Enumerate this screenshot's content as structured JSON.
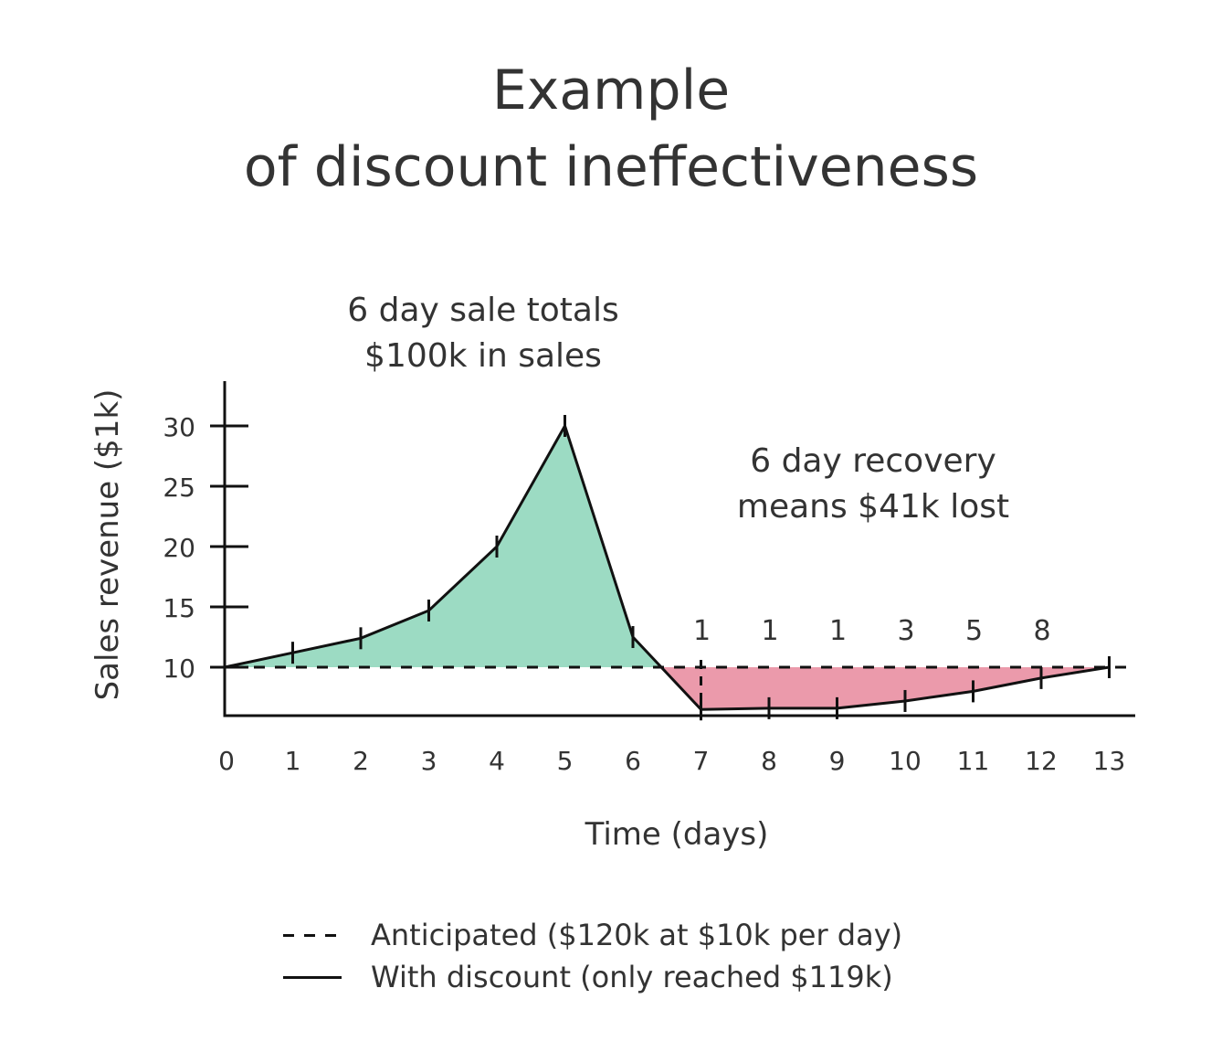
{
  "title": {
    "line1": "Example",
    "line2": "of discount ineffectiveness"
  },
  "annotations": {
    "sale_line1": "6 day sale totals",
    "sale_line2": "$100k in sales",
    "recovery_line1": "6 day recovery",
    "recovery_line2": "means $41k lost"
  },
  "axes": {
    "xlabel": "Time (days)",
    "ylabel": "Sales revenue ($1k)"
  },
  "legend": [
    {
      "style": "dashed",
      "label": "Anticipated ($120k at $10k per day)"
    },
    {
      "style": "solid",
      "label": "With discount (only reached $119k)"
    }
  ],
  "colors": {
    "gain_fill": "#9cdbc3",
    "loss_fill": "#eb9aab",
    "line": "#111111",
    "text": "#333333"
  },
  "chart_data": {
    "type": "area",
    "title": "Example of discount ineffectiveness",
    "xlabel": "Time (days)",
    "ylabel": "Sales revenue ($1k)",
    "x": [
      0,
      1,
      2,
      3,
      4,
      5,
      6,
      7,
      8,
      9,
      10,
      11,
      12,
      13
    ],
    "x_tick_labels": [
      "0",
      "1",
      "2",
      "3",
      "4",
      "5",
      "6",
      "7",
      "8",
      "9",
      "10",
      "11",
      "12",
      "13"
    ],
    "y_ticks": [
      10,
      15,
      20,
      25,
      30
    ],
    "ylim": [
      6,
      34
    ],
    "grid": false,
    "legend_position": "bottom",
    "series": [
      {
        "name": "Anticipated ($120k at $10k per day)",
        "style": "dashed",
        "values": [
          10,
          10,
          10,
          10,
          10,
          10,
          10,
          10,
          10,
          10,
          10,
          10,
          10,
          10
        ]
      },
      {
        "name": "With discount (only reached $119k)",
        "style": "solid",
        "values": [
          10,
          11.2,
          12.4,
          14.7,
          20,
          30,
          12.5,
          6.5,
          6.6,
          6.6,
          7.2,
          8.0,
          9.1,
          10
        ]
      }
    ],
    "shaded_regions": [
      {
        "label": "6 day sale totals $100k in sales",
        "color": "#9cdbc3",
        "x_range": [
          0,
          6.5
        ],
        "type": "above_anticipated"
      },
      {
        "label": "6 day recovery means $41k lost",
        "color": "#eb9aab",
        "x_range": [
          6.5,
          13
        ],
        "type": "below_anticipated"
      }
    ],
    "point_annotations": [
      {
        "x": 7,
        "label": "1"
      },
      {
        "x": 8,
        "label": "1"
      },
      {
        "x": 9,
        "label": "1"
      },
      {
        "x": 10,
        "label": "3"
      },
      {
        "x": 11,
        "label": "5"
      },
      {
        "x": 12,
        "label": "8"
      }
    ],
    "annotations": [
      "6 day sale totals $100k in sales",
      "6 day recovery means $41k lost"
    ]
  }
}
